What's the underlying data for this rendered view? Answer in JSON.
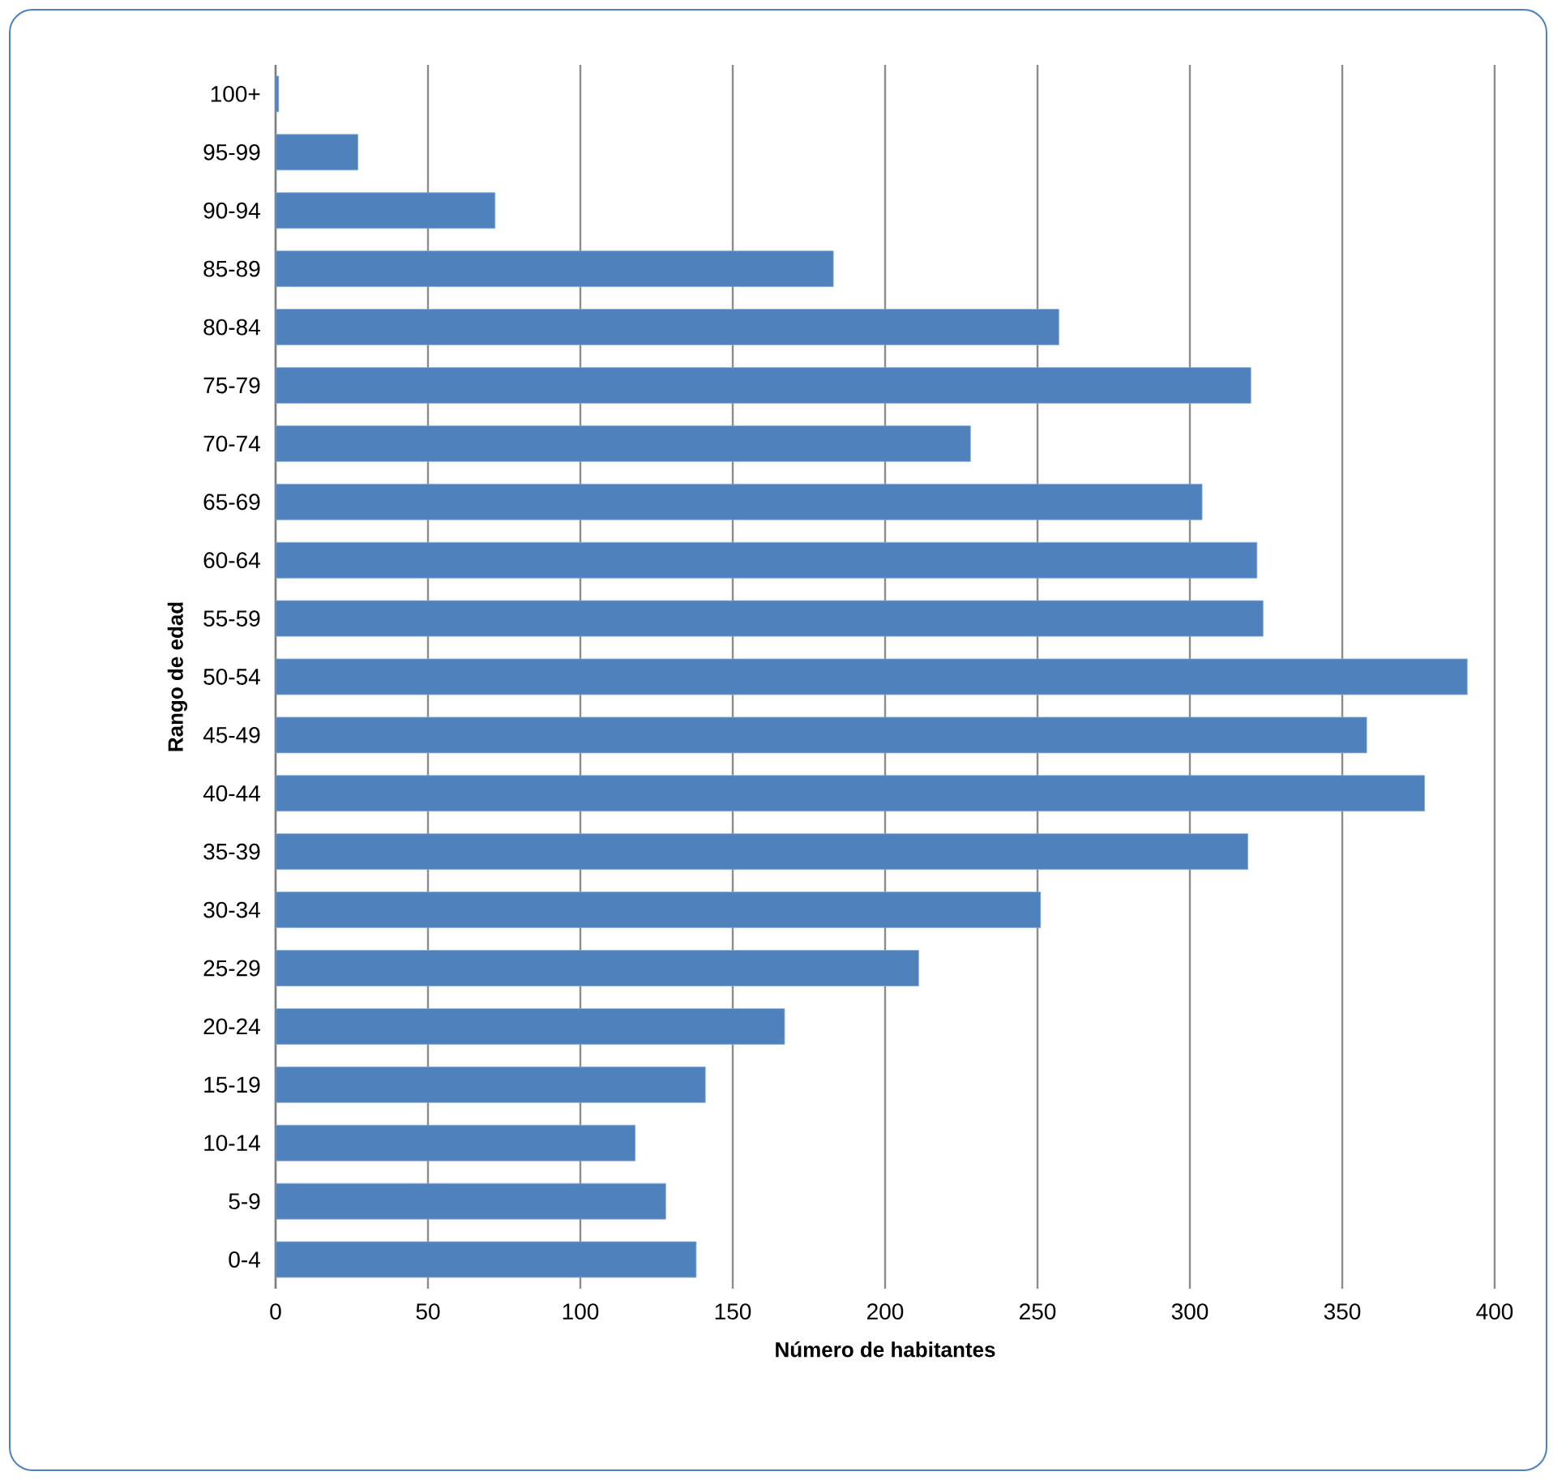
{
  "chart_data": {
    "type": "bar",
    "orientation": "horizontal",
    "xlabel": "Número de habitantes",
    "ylabel": "Rango de edad",
    "categories": [
      "100+",
      "95-99",
      "90-94",
      "85-89",
      "80-84",
      "75-79",
      "70-74",
      "65-69",
      "60-64",
      "55-59",
      "50-54",
      "45-49",
      "40-44",
      "35-39",
      "30-34",
      "25-29",
      "20-24",
      "15-19",
      "10-14",
      "5-9",
      "0-4"
    ],
    "values": [
      1,
      27,
      72,
      183,
      257,
      320,
      228,
      304,
      322,
      324,
      391,
      358,
      377,
      319,
      251,
      211,
      167,
      141,
      118,
      128,
      138
    ],
    "color": "#4f81bd",
    "xlim": [
      0,
      400
    ],
    "xticks": [
      0,
      50,
      100,
      150,
      200,
      250,
      300,
      350,
      400
    ],
    "grid": "x"
  }
}
